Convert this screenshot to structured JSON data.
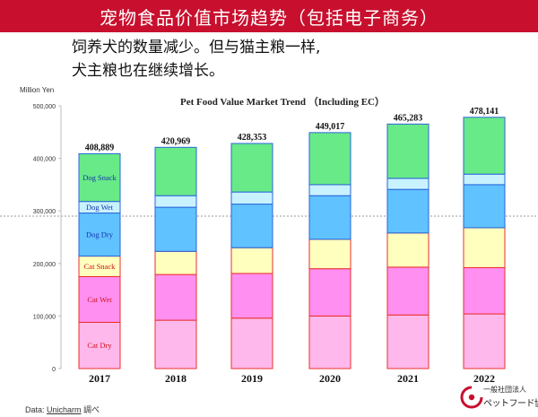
{
  "header": {
    "title": "宠物食品价值市场趋势（包括电子商务）",
    "subtitle_lines": [
      "饲养犬的数量减少。但与猫主粮一样,",
      "犬主粮也在继续增长。"
    ]
  },
  "source": {
    "prefix": "Data: ",
    "name": "Unicharm",
    "suffix": " 調べ"
  },
  "logo": {
    "line1": "一般社団法人",
    "line2": "ペットフード協"
  },
  "colors": {
    "banner": "#c8102e",
    "cat_dry": "#ffb8ec",
    "cat_wet": "#ff8ff0",
    "cat_snack": "#ffffbe",
    "dog_dry": "#60c2ff",
    "dog_wet": "#c8f2ff",
    "dog_snack": "#68ea88",
    "bar_border_cat": "#e8302c",
    "bar_border_dog": "#2a64d8",
    "label_cat": "#d01020",
    "label_dog": "#1636b0"
  },
  "chart_data": {
    "type": "bar",
    "stacked": true,
    "title": "Pet Food Value Market Trend （Including EC）",
    "ylabel": "Million Yen",
    "xlabel": "",
    "ylim": [
      0,
      500000
    ],
    "yticks": [
      "0",
      "100,000",
      "200,000",
      "300,000",
      "400,000",
      "500,000"
    ],
    "categories": [
      "2017",
      "2018",
      "2019",
      "2020",
      "2021",
      "2022"
    ],
    "totals": [
      408889,
      420969,
      428353,
      449017,
      465283,
      478141
    ],
    "total_labels": [
      "408,889",
      "420,969",
      "428,353",
      "449,017",
      "465,283",
      "478,141"
    ],
    "series": [
      {
        "name": "Cat Dry",
        "values": [
          88000,
          92000,
          96000,
          100000,
          102000,
          104000
        ]
      },
      {
        "name": "Cat Wet",
        "values": [
          87000,
          87000,
          85000,
          90000,
          91000,
          88000
        ]
      },
      {
        "name": "Cat Snack",
        "values": [
          39000,
          44000,
          49000,
          56000,
          65000,
          76000
        ]
      },
      {
        "name": "Dog Dry",
        "values": [
          82000,
          84000,
          83000,
          83000,
          83000,
          82000
        ]
      },
      {
        "name": "Dog Wet",
        "values": [
          22000,
          22000,
          23000,
          21000,
          21000,
          20000
        ]
      },
      {
        "name": "Dog Snack",
        "values": [
          90889,
          91969,
          92353,
          99017,
          103283,
          108141
        ]
      }
    ],
    "grid": false,
    "legend": "inside first bar"
  }
}
